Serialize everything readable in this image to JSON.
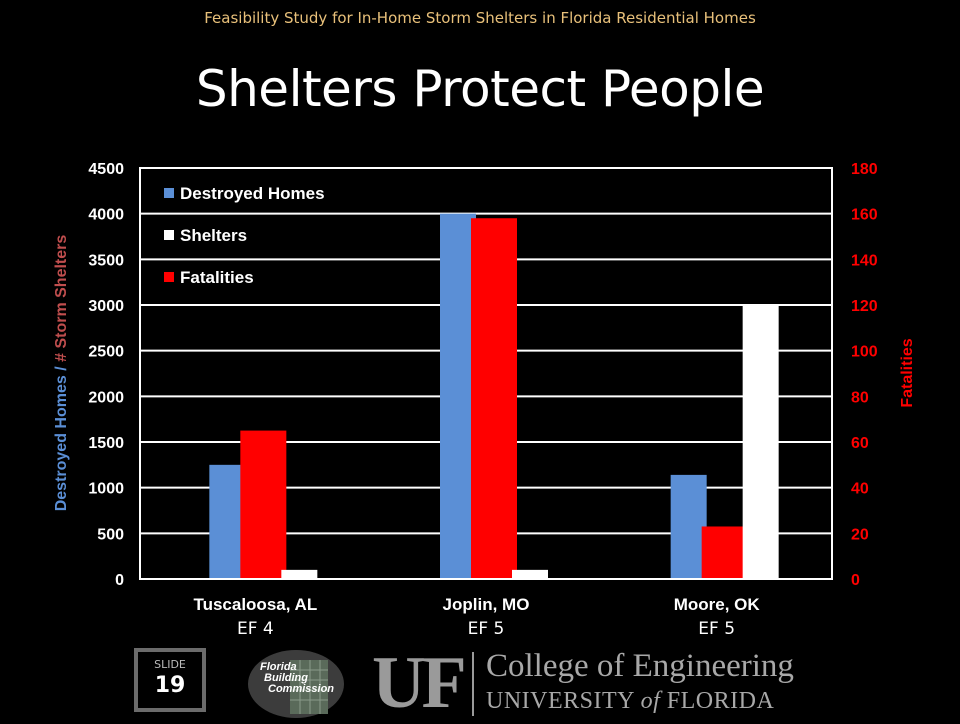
{
  "header": {
    "top_text": "Feasibility Study for In-Home Storm Shelters in Florida Residential Homes",
    "title": "Shelters Protect People"
  },
  "chart_data": {
    "type": "bar",
    "categories": [
      "Tuscaloosa, AL",
      "Joplin, MO",
      "Moore, OK"
    ],
    "subcategories": [
      "EF 4",
      "EF 5",
      "EF 5"
    ],
    "series": [
      {
        "name": "Destroyed Homes",
        "axis": "left",
        "color": "#5b8fd6",
        "values": [
          1250,
          4000,
          1140
        ]
      },
      {
        "name": "Fatalities",
        "axis": "right",
        "color": "#ff0000",
        "values": [
          65,
          158,
          23
        ]
      },
      {
        "name": "Shelters",
        "axis": "left",
        "color": "#ffffff",
        "values": [
          100,
          100,
          3000
        ]
      }
    ],
    "legend_order": [
      "Destroyed Homes",
      "Shelters",
      "Fatalities"
    ],
    "legend_position": "top-left",
    "y_left": {
      "label_parts": [
        {
          "text": "Destroyed Homes",
          "color": "#5b8fd6"
        },
        {
          "text": " / ",
          "color": "#5b8fd6"
        },
        {
          "text": "# Storm Shelters",
          "color": "#c04e4e"
        }
      ],
      "ylim": [
        0,
        4500
      ],
      "ticks": [
        0,
        500,
        1000,
        1500,
        2000,
        2500,
        3000,
        3500,
        4000,
        4500
      ]
    },
    "y_right": {
      "label": "Fatalities",
      "color": "#ff0000",
      "ylim": [
        0,
        180
      ],
      "ticks": [
        0,
        20,
        40,
        60,
        80,
        100,
        120,
        140,
        160,
        180
      ]
    },
    "grid": true
  },
  "footer": {
    "slide_label": "SLIDE",
    "slide_number": "19",
    "fbc_logo": "Florida Building Commission",
    "uf_mark": "UF",
    "college": "College of Engineering",
    "university_pre": "UNIVERSITY ",
    "university_of": "of",
    "university_post": " FLORIDA"
  }
}
